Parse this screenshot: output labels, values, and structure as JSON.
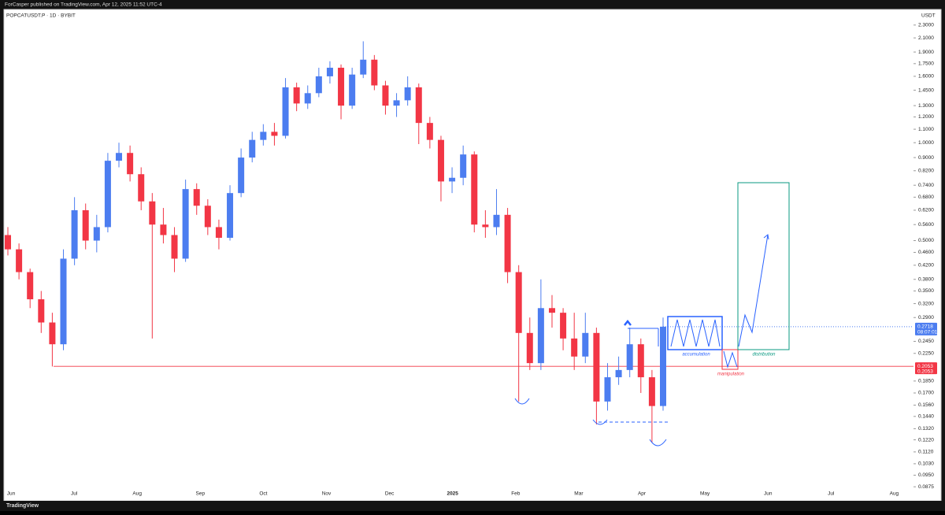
{
  "header": {
    "text": "ForCasper published on TradingView.com, Apr 12, 2025 11:52 UTC-4"
  },
  "footer": {
    "brand": "TradingView"
  },
  "chart_data": {
    "type": "candlestick",
    "title": "POPCATUSDT.P · 1D · BYBIT",
    "y_unit": "USDT",
    "log_scale": true,
    "x_labels": [
      "Jun",
      "Jul",
      "Aug",
      "Sep",
      "Oct",
      "Nov",
      "Dec",
      "2025",
      "Feb",
      "Mar",
      "Apr",
      "May",
      "Jun",
      "Jul",
      "Aug"
    ],
    "up_color": "#4c7df0",
    "down_color": "#f23645",
    "open": [
      0.52,
      0.47,
      0.4,
      0.33,
      0.28,
      0.24,
      0.44,
      0.62,
      0.5,
      0.55,
      0.88,
      0.93,
      0.8,
      0.66,
      0.56,
      0.52,
      0.44,
      0.72,
      0.64,
      0.55,
      0.51,
      0.7,
      0.9,
      1.02,
      1.08,
      1.05,
      1.48,
      1.32,
      1.42,
      1.6,
      1.7,
      1.3,
      1.62,
      1.8,
      1.5,
      1.3,
      1.35,
      1.48,
      1.15,
      1.02,
      0.76,
      0.78,
      0.92,
      0.56,
      0.55,
      0.6,
      0.4,
      0.26,
      0.21,
      0.31,
      0.3,
      0.25,
      0.22,
      0.26,
      0.16,
      0.19,
      0.2,
      0.24,
      0.19,
      0.155
    ],
    "high": [
      0.55,
      0.49,
      0.41,
      0.35,
      0.3,
      0.47,
      0.68,
      0.65,
      0.6,
      0.93,
      1.0,
      0.98,
      0.84,
      0.7,
      0.63,
      0.55,
      0.77,
      0.75,
      0.67,
      0.58,
      0.74,
      0.96,
      1.08,
      1.14,
      1.15,
      1.58,
      1.53,
      1.5,
      1.7,
      1.78,
      1.74,
      1.7,
      2.05,
      1.86,
      1.55,
      1.42,
      1.6,
      1.52,
      1.2,
      1.05,
      0.84,
      0.98,
      0.94,
      0.62,
      0.72,
      0.63,
      0.42,
      0.29,
      0.38,
      0.34,
      0.31,
      0.3,
      0.3,
      0.27,
      0.21,
      0.22,
      0.27,
      0.25,
      0.2,
      0.29
    ],
    "low": [
      0.45,
      0.38,
      0.31,
      0.26,
      0.205,
      0.23,
      0.42,
      0.47,
      0.46,
      0.53,
      0.84,
      0.76,
      0.62,
      0.25,
      0.49,
      0.4,
      0.43,
      0.6,
      0.52,
      0.47,
      0.5,
      0.68,
      0.87,
      0.98,
      0.98,
      1.03,
      1.25,
      1.27,
      1.38,
      1.52,
      1.18,
      1.27,
      1.58,
      1.45,
      1.22,
      1.2,
      1.3,
      0.99,
      0.96,
      0.66,
      0.7,
      0.74,
      0.53,
      0.51,
      0.52,
      0.37,
      0.16,
      0.2,
      0.2,
      0.27,
      0.23,
      0.2,
      0.21,
      0.136,
      0.15,
      0.18,
      0.19,
      0.17,
      0.12,
      0.15
    ],
    "close": [
      0.47,
      0.4,
      0.33,
      0.28,
      0.24,
      0.44,
      0.62,
      0.5,
      0.55,
      0.88,
      0.93,
      0.8,
      0.66,
      0.56,
      0.52,
      0.44,
      0.72,
      0.64,
      0.55,
      0.51,
      0.7,
      0.9,
      1.02,
      1.08,
      1.05,
      1.48,
      1.32,
      1.42,
      1.6,
      1.7,
      1.3,
      1.62,
      1.8,
      1.5,
      1.3,
      1.35,
      1.48,
      1.15,
      1.02,
      0.76,
      0.78,
      0.92,
      0.56,
      0.55,
      0.6,
      0.4,
      0.26,
      0.21,
      0.31,
      0.3,
      0.25,
      0.22,
      0.26,
      0.16,
      0.19,
      0.2,
      0.24,
      0.19,
      0.155,
      0.2718
    ],
    "ylim": [
      0.081,
      2.54
    ],
    "yticks": [
      {
        "value": 2.3,
        "label": "2.3000"
      },
      {
        "value": 2.1,
        "label": "2.1000"
      },
      {
        "value": 1.9,
        "label": "1.9000"
      },
      {
        "value": 1.75,
        "label": "1.7500"
      },
      {
        "value": 1.6,
        "label": "1.6000"
      },
      {
        "value": 1.45,
        "label": "1.4500"
      },
      {
        "value": 1.3,
        "label": "1.3000"
      },
      {
        "value": 1.2,
        "label": "1.2000"
      },
      {
        "value": 1.1,
        "label": "1.1000"
      },
      {
        "value": 1,
        "label": "1.0000"
      },
      {
        "value": 0.9,
        "label": "0.9000"
      },
      {
        "value": 0.82,
        "label": "0.8200"
      },
      {
        "value": 0.74,
        "label": "0.7400"
      },
      {
        "value": 0.68,
        "label": "0.6800"
      },
      {
        "value": 0.62,
        "label": "0.6200"
      },
      {
        "value": 0.56,
        "label": "0.5600"
      },
      {
        "value": 0.5,
        "label": "0.5000"
      },
      {
        "value": 0.46,
        "label": "0.4600"
      },
      {
        "value": 0.42,
        "label": "0.4200"
      },
      {
        "value": 0.38,
        "label": "0.3800"
      },
      {
        "value": 0.35,
        "label": "0.3500"
      },
      {
        "value": 0.32,
        "label": "0.3200"
      },
      {
        "value": 0.29,
        "label": "0.2900"
      },
      {
        "value": 0.245,
        "label": "0.2450"
      },
      {
        "value": 0.225,
        "label": "0.2250"
      },
      {
        "value": 0.185,
        "label": "0.1850"
      },
      {
        "value": 0.17,
        "label": "0.1700"
      },
      {
        "value": 0.156,
        "label": "0.1560"
      },
      {
        "value": 0.144,
        "label": "0.1440"
      },
      {
        "value": 0.132,
        "label": "0.1320"
      },
      {
        "value": 0.122,
        "label": "0.1220"
      },
      {
        "value": 0.112,
        "label": "0.1120"
      },
      {
        "value": 0.103,
        "label": "0.1030"
      },
      {
        "value": 0.095,
        "label": "0.0950"
      },
      {
        "value": 0.0875,
        "label": "0.0875"
      }
    ],
    "last_price": {
      "value": 0.2718,
      "label": "0.2718",
      "countdown": "08:07:01"
    },
    "level": {
      "value": 0.2053,
      "label": "0.2053",
      "label2": "0.2053"
    },
    "annotations": [
      "accumulation",
      "manipulation",
      "distribution"
    ]
  }
}
